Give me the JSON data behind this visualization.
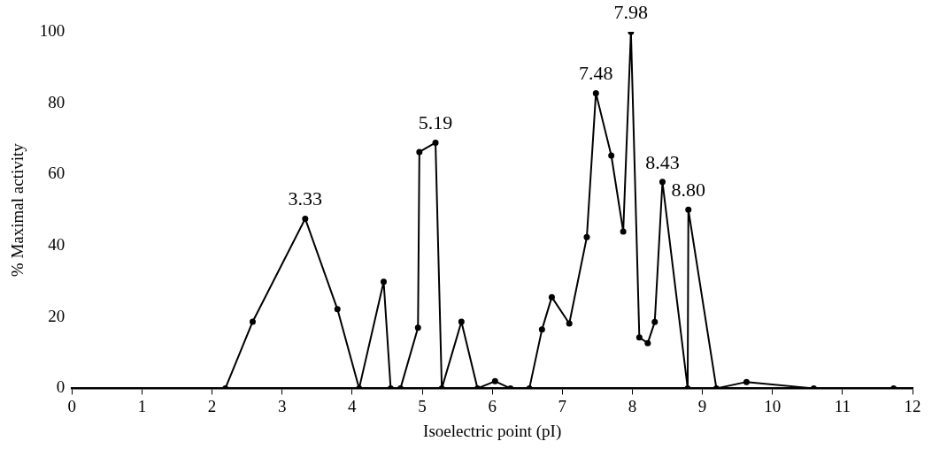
{
  "chart_data": {
    "type": "line",
    "xlabel": "Isoelectric point (pI)",
    "ylabel": "% Maximal activity",
    "x": [
      2.19,
      2.58,
      3.33,
      3.79,
      4.1,
      4.45,
      4.55,
      4.69,
      4.94,
      4.96,
      5.19,
      5.28,
      5.56,
      5.79,
      6.04,
      6.26,
      6.53,
      6.71,
      6.85,
      7.1,
      7.35,
      7.48,
      7.7,
      7.87,
      7.98,
      8.1,
      8.22,
      8.32,
      8.43,
      8.79,
      8.8,
      9.2,
      9.63,
      10.59,
      11.73
    ],
    "series": [
      {
        "color": "#000000",
        "values": [
          0,
          18.7,
          47.6,
          22.2,
          0,
          29.9,
          0,
          0,
          17.0,
          66.3,
          68.9,
          0,
          18.7,
          0,
          2.0,
          0,
          0,
          16.5,
          25.6,
          18.2,
          42.4,
          82.8,
          65.3,
          44.0,
          100,
          14.3,
          12.7,
          18.6,
          57.9,
          0,
          50.1,
          0,
          1.8,
          0,
          0
        ]
      }
    ],
    "xlim": [
      0,
      12
    ],
    "xticks": [
      0,
      1,
      2,
      3,
      4,
      5,
      6,
      7,
      8,
      9,
      10,
      11,
      12
    ],
    "ylim": [
      0,
      100
    ],
    "yticks": [
      0,
      20,
      40,
      60,
      80,
      100
    ],
    "grid": false,
    "legend": false,
    "marker": "circle",
    "line_style": "solid",
    "annotations": [
      {
        "text": "3.33",
        "x": 3.33,
        "y": 47.6
      },
      {
        "text": "5.19",
        "x": 5.19,
        "y": 68.9
      },
      {
        "text": "7.48",
        "x": 7.48,
        "y": 82.8
      },
      {
        "text": "7.98",
        "x": 7.98,
        "y": 100
      },
      {
        "text": "8.43",
        "x": 8.43,
        "y": 57.9
      },
      {
        "text": "8.80",
        "x": 8.8,
        "y": 50.1
      }
    ]
  }
}
